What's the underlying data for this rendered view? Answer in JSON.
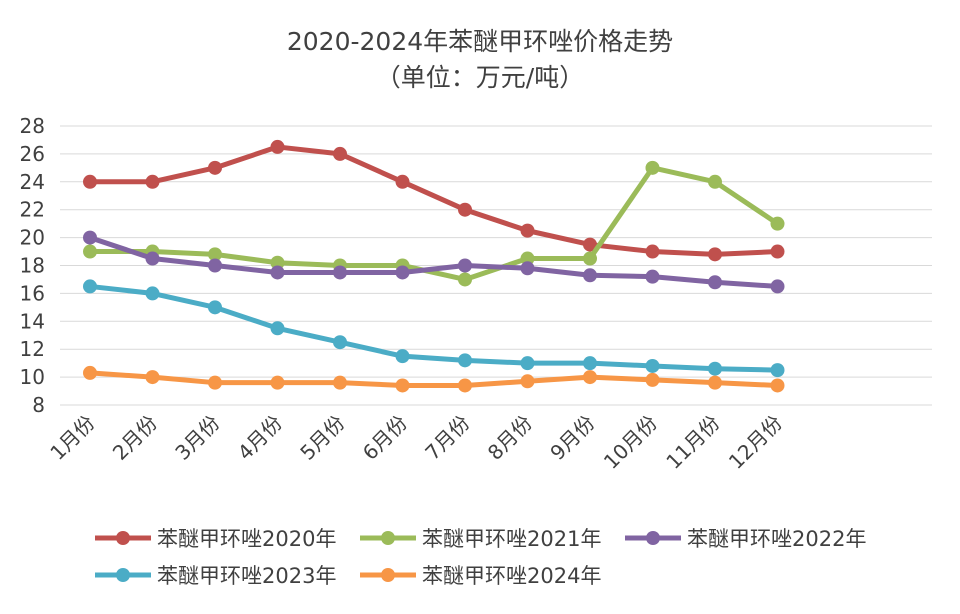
{
  "chart_data": {
    "type": "line",
    "title": "2020-2024年苯醚甲环唑价格走势",
    "subtitle": "（单位：万元/吨）",
    "categories": [
      "1月份",
      "2月份",
      "3月份",
      "4月份",
      "5月份",
      "6月份",
      "7月份",
      "8月份",
      "9月份",
      "10月份",
      "11月份",
      "12月份"
    ],
    "ylim": [
      8,
      28
    ],
    "yticks": [
      8,
      10,
      12,
      14,
      16,
      18,
      20,
      22,
      24,
      26,
      28
    ],
    "grid": true,
    "legend_position": "bottom",
    "series": [
      {
        "name": "苯醚甲环唑2020年",
        "color": "#C0504D",
        "values": [
          24,
          24,
          25,
          26.5,
          26,
          24,
          22,
          20.5,
          19.5,
          19,
          18.8,
          19
        ]
      },
      {
        "name": "苯醚甲环唑2021年",
        "color": "#9BBB59",
        "values": [
          19,
          19,
          18.8,
          18.2,
          18,
          18,
          17,
          18.5,
          18.5,
          25,
          24,
          21
        ]
      },
      {
        "name": "苯醚甲环唑2022年",
        "color": "#8064A2",
        "values": [
          20,
          18.5,
          18,
          17.5,
          17.5,
          17.5,
          18,
          17.8,
          17.3,
          17.2,
          16.8,
          16.5
        ]
      },
      {
        "name": "苯醚甲环唑2023年",
        "color": "#4BACC6",
        "values": [
          16.5,
          16,
          15,
          13.5,
          12.5,
          11.5,
          11.2,
          11,
          11,
          10.8,
          10.6,
          10.5
        ]
      },
      {
        "name": "苯醚甲环唑2024年",
        "color": "#F79646",
        "values": [
          10.3,
          10,
          9.6,
          9.6,
          9.6,
          9.4,
          9.4,
          9.7,
          10,
          9.8,
          9.6,
          9.4
        ]
      }
    ]
  }
}
